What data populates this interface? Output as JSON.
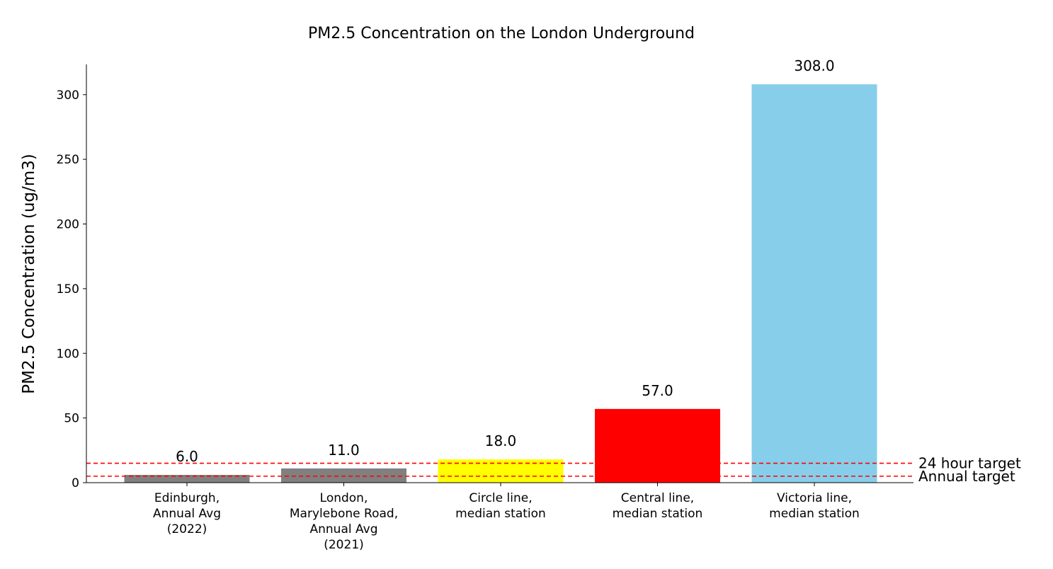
{
  "chart_data": {
    "type": "bar",
    "title": "PM2.5 Concentration on the London Underground",
    "xlabel": "",
    "ylabel": "PM2.5 Concentration (ug/m3)",
    "ylim": [
      0,
      323.4
    ],
    "yticks": [
      0,
      50,
      100,
      150,
      200,
      250,
      300
    ],
    "grid": false,
    "categories": [
      [
        "Edinburgh,",
        "Annual Avg",
        "(2022)"
      ],
      [
        "London,",
        "Marylebone Road,",
        "Annual Avg",
        "(2021)"
      ],
      [
        "Circle line,",
        "median station"
      ],
      [
        "Central line,",
        "median station"
      ],
      [
        "Victoria line,",
        "median station"
      ]
    ],
    "values": [
      6.0,
      11.0,
      18.0,
      57.0,
      308.0
    ],
    "value_labels": [
      "6.0",
      "11.0",
      "18.0",
      "57.0",
      "308.0"
    ],
    "bar_colors": [
      "#808080",
      "#808080",
      "#ffff00",
      "#ff0000",
      "#87ceeb"
    ],
    "reference_lines": [
      {
        "label": "24 hour target",
        "value": 15,
        "color": "#ff0000",
        "style": "dashed"
      },
      {
        "label": "Annual target",
        "value": 5,
        "color": "#ff0000",
        "style": "dashed"
      }
    ]
  }
}
